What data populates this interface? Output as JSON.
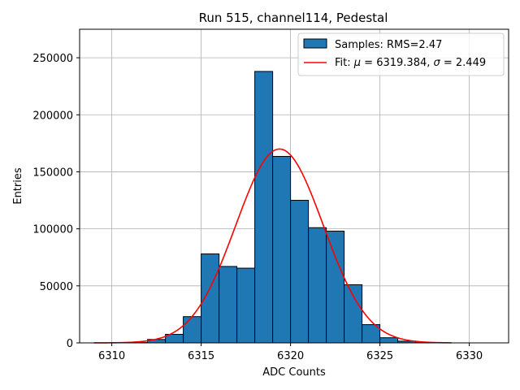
{
  "chart_data": {
    "type": "bar",
    "title": "Run 515, channel114, Pedestal",
    "xlabel": "ADC Counts",
    "ylabel": "Entries",
    "xlim": [
      6308.2,
      6332.2
    ],
    "ylim": [
      0,
      275000
    ],
    "x_ticks": [
      6310,
      6315,
      6320,
      6325,
      6330
    ],
    "y_ticks": [
      0,
      50000,
      100000,
      150000,
      200000,
      250000
    ],
    "grid": true,
    "legend_position": "top-right",
    "bar_color": "#1f77b4",
    "fit_color": "#ff0000",
    "histogram": {
      "name": "Samples: RMS=2.47",
      "bins": [
        {
          "left": 6311,
          "right": 6312,
          "value": 300
        },
        {
          "left": 6312,
          "right": 6313,
          "value": 3000
        },
        {
          "left": 6313,
          "right": 6314,
          "value": 7500
        },
        {
          "left": 6314,
          "right": 6315,
          "value": 23000
        },
        {
          "left": 6315,
          "right": 6316,
          "value": 78000
        },
        {
          "left": 6316,
          "right": 6317,
          "value": 67000
        },
        {
          "left": 6317,
          "right": 6318,
          "value": 65500
        },
        {
          "left": 6318,
          "right": 6319,
          "value": 238000
        },
        {
          "left": 6319,
          "right": 6320,
          "value": 163500
        },
        {
          "left": 6320,
          "right": 6321,
          "value": 125000
        },
        {
          "left": 6321,
          "right": 6322,
          "value": 101000
        },
        {
          "left": 6322,
          "right": 6323,
          "value": 98000
        },
        {
          "left": 6323,
          "right": 6324,
          "value": 51000
        },
        {
          "left": 6324,
          "right": 6325,
          "value": 16000
        },
        {
          "left": 6325,
          "right": 6326,
          "value": 4500
        },
        {
          "left": 6326,
          "right": 6327,
          "value": 1500
        },
        {
          "left": 6327,
          "right": 6328,
          "value": 400
        }
      ]
    },
    "fit": {
      "name": "Fit: μ = 6319.384, σ = 2.449",
      "label_prefix": "Fit: ",
      "mu_symbol": "μ",
      "mu_text": " = 6319.384, ",
      "sigma_symbol": "σ",
      "sigma_text": " = 2.449",
      "mu": 6319.384,
      "sigma": 2.449,
      "amplitude": 170000,
      "x_range": [
        6309,
        6329
      ]
    }
  }
}
